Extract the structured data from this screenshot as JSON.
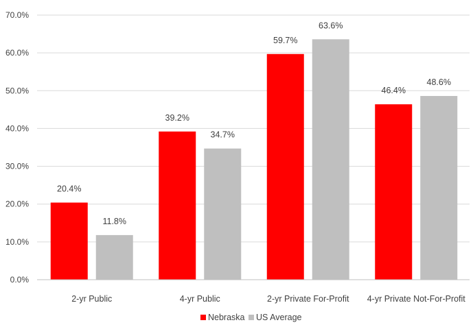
{
  "chart_data": {
    "type": "bar",
    "categories": [
      "2-yr Public",
      "4-yr Public",
      "2-yr Private For-Profit",
      "4-yr Private Not-For-Profit"
    ],
    "series": [
      {
        "name": "Nebraska",
        "values": [
          20.4,
          39.2,
          59.7,
          46.4
        ],
        "labels": [
          "20.4%",
          "39.2%",
          "59.7%",
          "46.4%"
        ],
        "color": "#ff0000"
      },
      {
        "name": "US Average",
        "values": [
          11.8,
          34.7,
          63.6,
          48.6
        ],
        "labels": [
          "11.8%",
          "34.7%",
          "63.6%",
          "48.6%"
        ],
        "color": "#bfbfbf"
      }
    ],
    "ylim": [
      0,
      70
    ],
    "yticks": [
      0,
      10,
      20,
      30,
      40,
      50,
      60,
      70
    ],
    "ytick_labels": [
      "0.0%",
      "10.0%",
      "20.0%",
      "30.0%",
      "40.0%",
      "50.0%",
      "60.0%",
      "70.0%"
    ],
    "grid": true,
    "legend_position": "bottom",
    "title": "",
    "xlabel": "",
    "ylabel": ""
  }
}
